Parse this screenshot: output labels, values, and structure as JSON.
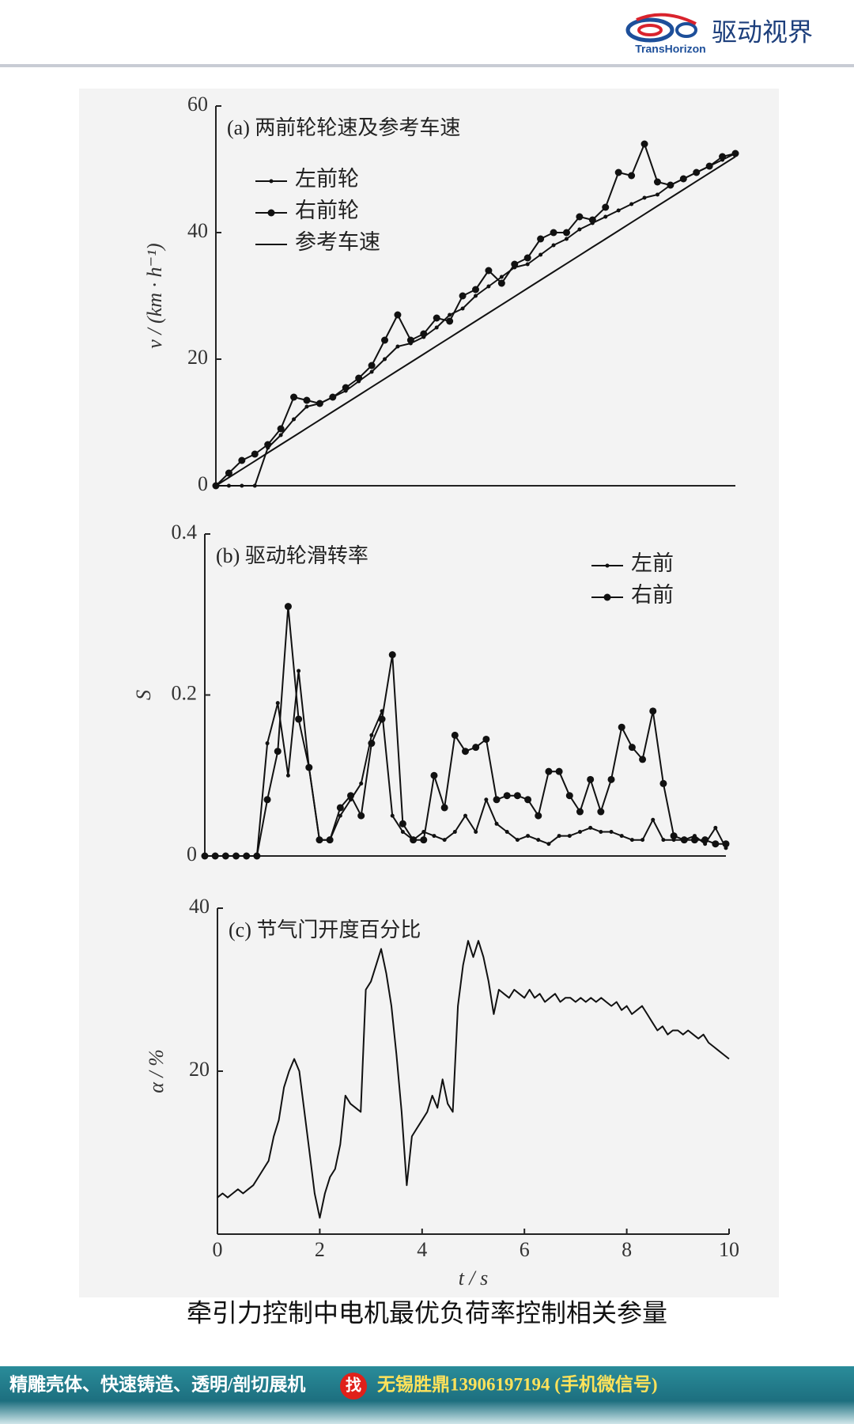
{
  "header": {
    "brand": "驱动视界",
    "logo_text": "TransHorizon"
  },
  "chart_data": [
    {
      "type": "line",
      "title": "(a) 两前轮轮速及参考车速",
      "ylabel": "v / (km · h⁻¹)",
      "legend": "upper left",
      "xlim": [
        0,
        10
      ],
      "ylim": [
        0,
        60
      ],
      "yticks": [
        0,
        20,
        40,
        60
      ],
      "x": [
        0,
        0.25,
        0.5,
        0.75,
        1,
        1.25,
        1.5,
        1.75,
        2,
        2.25,
        2.5,
        2.75,
        3,
        3.25,
        3.5,
        3.75,
        4,
        4.25,
        4.5,
        4.75,
        5,
        5.25,
        5.5,
        5.75,
        6,
        6.25,
        6.5,
        6.75,
        7,
        7.25,
        7.5,
        7.75,
        8,
        8.25,
        8.5,
        8.75,
        9,
        9.25,
        9.5,
        9.75,
        10
      ],
      "series": [
        {
          "name": "左前轮",
          "color": "#111111",
          "marker": "small",
          "values": [
            0,
            0,
            0,
            0,
            6,
            8,
            10.5,
            12.5,
            13,
            14,
            15,
            16.5,
            18,
            20,
            22,
            22.5,
            23.5,
            25,
            27,
            28,
            30,
            31.5,
            33,
            34.5,
            35,
            36.5,
            38,
            39,
            40.5,
            41.5,
            42.5,
            43.5,
            44.5,
            45.5,
            46,
            47.5,
            48.5,
            49.5,
            50.5,
            51.5,
            52.5
          ]
        },
        {
          "name": "右前轮",
          "color": "#111111",
          "marker": "large",
          "values": [
            0,
            2,
            4,
            5,
            6.5,
            9,
            14,
            13.5,
            13,
            14,
            15.5,
            17,
            19,
            23,
            27,
            23,
            24,
            26.5,
            26,
            30,
            31,
            34,
            32,
            35,
            36,
            39,
            40,
            40,
            42.5,
            42,
            44,
            49.5,
            49,
            54,
            48,
            47.5,
            48.5,
            49.5,
            50.5,
            52,
            52.5
          ]
        },
        {
          "name": "参考车速",
          "color": "#111111",
          "marker": "none",
          "values": [
            0,
            1.3,
            2.6,
            3.9,
            5.2,
            6.5,
            7.8,
            9.1,
            10.4,
            11.7,
            13,
            14.3,
            15.6,
            16.9,
            18.2,
            19.5,
            20.8,
            22.1,
            23.4,
            24.7,
            26,
            27.3,
            28.6,
            29.9,
            31.2,
            32.5,
            33.8,
            35.1,
            36.4,
            37.7,
            39,
            40.3,
            41.6,
            42.9,
            44.2,
            45.5,
            46.8,
            48.1,
            49.4,
            50.7,
            52
          ]
        }
      ]
    },
    {
      "type": "line",
      "title": "(b) 驱动轮滑转率",
      "ylabel": "S",
      "legend": "upper right",
      "xlim": [
        0,
        10
      ],
      "ylim": [
        0,
        0.4
      ],
      "yticks": [
        0,
        0.2,
        0.4
      ],
      "x": [
        0,
        0.2,
        0.4,
        0.6,
        0.8,
        1,
        1.2,
        1.4,
        1.6,
        1.8,
        2,
        2.2,
        2.4,
        2.6,
        2.8,
        3,
        3.2,
        3.4,
        3.6,
        3.8,
        4,
        4.2,
        4.4,
        4.6,
        4.8,
        5,
        5.2,
        5.4,
        5.6,
        5.8,
        6,
        6.2,
        6.4,
        6.6,
        6.8,
        7,
        7.2,
        7.4,
        7.6,
        7.8,
        8,
        8.2,
        8.4,
        8.6,
        8.8,
        9,
        9.2,
        9.4,
        9.6,
        9.8,
        10
      ],
      "series": [
        {
          "name": "左前",
          "color": "#111111",
          "marker": "small",
          "values": [
            0,
            0,
            0,
            0,
            0,
            0,
            0.14,
            0.19,
            0.1,
            0.23,
            0.11,
            0.02,
            0.02,
            0.05,
            0.07,
            0.09,
            0.15,
            0.18,
            0.05,
            0.03,
            0.02,
            0.03,
            0.025,
            0.02,
            0.03,
            0.05,
            0.03,
            0.07,
            0.04,
            0.03,
            0.02,
            0.025,
            0.02,
            0.015,
            0.025,
            0.025,
            0.03,
            0.035,
            0.03,
            0.03,
            0.025,
            0.02,
            0.02,
            0.045,
            0.02,
            0.02,
            0.02,
            0.025,
            0.015,
            0.035,
            0.01
          ]
        },
        {
          "name": "右前",
          "color": "#111111",
          "marker": "large",
          "values": [
            0,
            0,
            0,
            0,
            0,
            0,
            0.07,
            0.13,
            0.31,
            0.17,
            0.11,
            0.02,
            0.02,
            0.06,
            0.075,
            0.05,
            0.14,
            0.17,
            0.25,
            0.04,
            0.02,
            0.02,
            0.1,
            0.06,
            0.15,
            0.13,
            0.135,
            0.145,
            0.07,
            0.075,
            0.075,
            0.07,
            0.05,
            0.105,
            0.105,
            0.075,
            0.055,
            0.095,
            0.055,
            0.095,
            0.16,
            0.135,
            0.12,
            0.18,
            0.09,
            0.025,
            0.02,
            0.02,
            0.02,
            0.015,
            0.015
          ]
        }
      ]
    },
    {
      "type": "line",
      "title": "(c) 节气门开度百分比",
      "ylabel": "α / %",
      "xlabel": "t / s",
      "xlim": [
        0,
        10
      ],
      "ylim": [
        0,
        40
      ],
      "yticks": [
        20,
        40
      ],
      "xticks": [
        0,
        2,
        4,
        6,
        8,
        10
      ],
      "x": [
        0,
        0.1,
        0.2,
        0.3,
        0.4,
        0.5,
        0.6,
        0.7,
        0.8,
        0.9,
        1,
        1.1,
        1.2,
        1.3,
        1.4,
        1.5,
        1.6,
        1.7,
        1.8,
        1.9,
        2,
        2.1,
        2.2,
        2.3,
        2.4,
        2.5,
        2.6,
        2.7,
        2.8,
        2.9,
        3,
        3.1,
        3.2,
        3.3,
        3.4,
        3.5,
        3.6,
        3.7,
        3.8,
        3.9,
        4,
        4.1,
        4.2,
        4.3,
        4.4,
        4.5,
        4.6,
        4.7,
        4.8,
        4.9,
        5,
        5.1,
        5.2,
        5.3,
        5.4,
        5.5,
        5.6,
        5.7,
        5.8,
        5.9,
        6,
        6.1,
        6.2,
        6.3,
        6.4,
        6.5,
        6.6,
        6.7,
        6.8,
        6.9,
        7,
        7.1,
        7.2,
        7.3,
        7.4,
        7.5,
        7.6,
        7.7,
        7.8,
        7.9,
        8,
        8.1,
        8.2,
        8.3,
        8.4,
        8.5,
        8.6,
        8.7,
        8.8,
        8.9,
        9,
        9.1,
        9.2,
        9.3,
        9.4,
        9.5,
        9.6,
        9.7,
        9.8,
        9.9,
        10
      ],
      "series": [
        {
          "name": "α",
          "color": "#111111",
          "marker": "none",
          "values": [
            4.5,
            5,
            4.5,
            5,
            5.5,
            5,
            5.5,
            6,
            7,
            8,
            9,
            12,
            14,
            18,
            20,
            21.5,
            20,
            15,
            10,
            5,
            2,
            5,
            7,
            8,
            11,
            17,
            16,
            15.5,
            15,
            30,
            31,
            33,
            35,
            32,
            28,
            22,
            15,
            6,
            12,
            13,
            14,
            15,
            17,
            15.5,
            19,
            16,
            15,
            28,
            33,
            36,
            34,
            36,
            34,
            31,
            27,
            30,
            29.5,
            29,
            30,
            29.5,
            29,
            30,
            29,
            29.5,
            28.5,
            29,
            29.5,
            28.5,
            29,
            29,
            28.5,
            29,
            28.5,
            29,
            28.5,
            29,
            28.5,
            28,
            28.5,
            27.5,
            28,
            27,
            27.5,
            28,
            27,
            26,
            25,
            25.5,
            24.5,
            25,
            25,
            24.5,
            25,
            24.5,
            24,
            24.5,
            23.5,
            23,
            22.5,
            22,
            21.5
          ]
        }
      ]
    }
  ],
  "caption": "牵引力控制中电机最优负荷率控制相关参量",
  "footer": {
    "left": "精雕壳体、快速铸造、透明/剖切展机",
    "badge": "找",
    "right": "无锡胜鼎13906197194 (手机微信号)"
  }
}
